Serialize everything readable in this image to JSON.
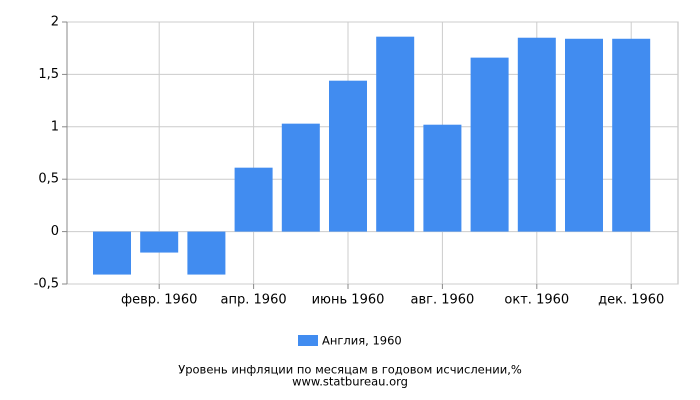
{
  "chart_data": {
    "type": "bar",
    "title": "Уровень инфляции по месяцам в годовом исчислении,%",
    "source": "www.statbureau.org",
    "categories": [
      null,
      "февр. 1960",
      null,
      "апр. 1960",
      null,
      "июнь 1960",
      null,
      "авг. 1960",
      null,
      "окт. 1960",
      null,
      "дек. 1960"
    ],
    "series": [
      {
        "name": "Англия, 1960",
        "color": "#418cf0",
        "values": [
          -0.41,
          -0.2,
          -0.41,
          0.61,
          1.03,
          1.44,
          1.86,
          1.02,
          1.66,
          1.85,
          1.84,
          1.84
        ]
      }
    ],
    "ylim": [
      -0.5,
      2
    ],
    "yticks": [
      {
        "value": -0.5,
        "label": "-0,5"
      },
      0,
      {
        "value": 0.5,
        "label": "0,5"
      },
      1,
      {
        "value": 1.5,
        "label": "1,5"
      },
      2
    ],
    "grid": true
  }
}
